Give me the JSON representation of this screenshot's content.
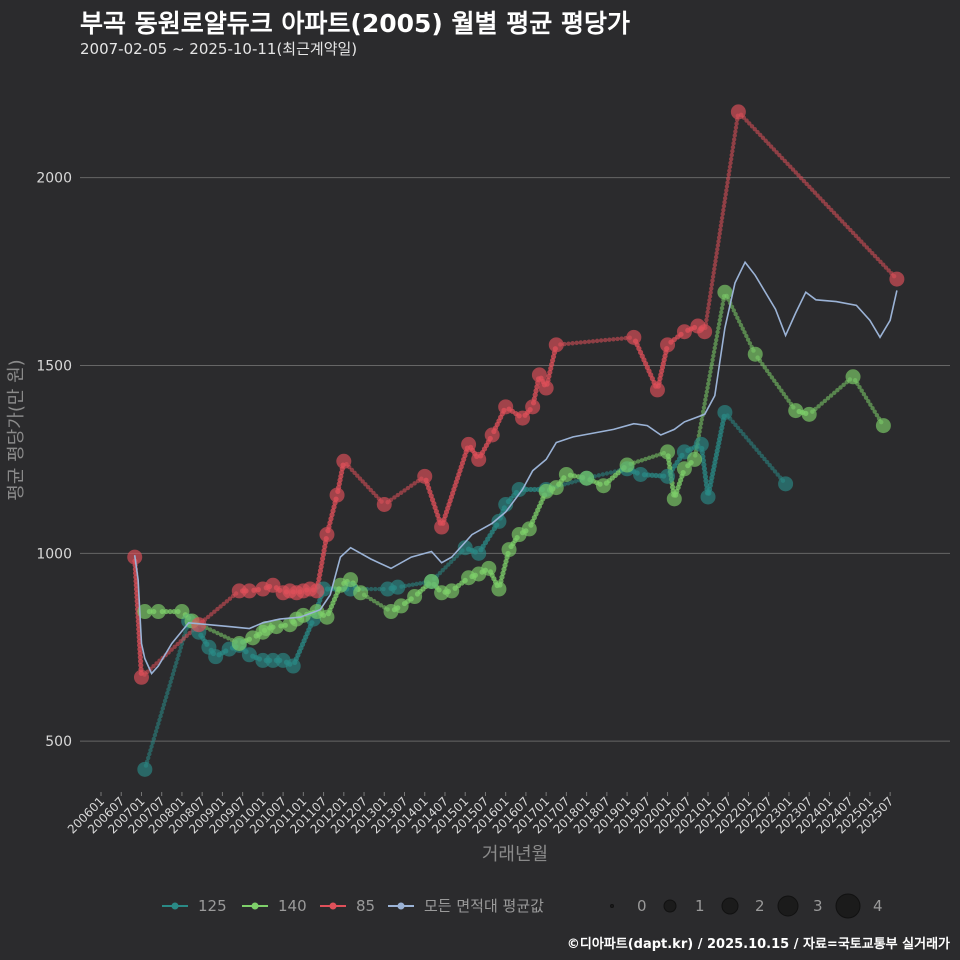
{
  "header": {
    "title": "부곡 동원로얄듀크 아파트(2005) 월별 평균 평당가",
    "subtitle": "2007-02-05 ~ 2025-10-11(최근계약일)"
  },
  "footer": {
    "credit": "©디아파트(dapt.kr) / 2025.10.15 / 자료=국토교통부 실거래가"
  },
  "colors": {
    "s125": "#2a8a86",
    "s140": "#7ed06a",
    "s85": "#e0505a",
    "avg": "#9bb3d6",
    "grid": "#666666",
    "text": "#d8d8d8"
  },
  "chart_data": {
    "type": "line",
    "title": "부곡 동원로얄듀크 아파트(2005) 월별 평균 평당가",
    "xlabel": "거래년월",
    "ylabel": "평균 평당가(만 원)",
    "x_range": [
      "2006-01",
      "2025-12"
    ],
    "ylim": [
      370,
      2260
    ],
    "y_ticks": [
      500,
      1000,
      1500,
      2000
    ],
    "x_tick_labels": [
      "200601",
      "200607",
      "200701",
      "200707",
      "200801",
      "200807",
      "200901",
      "200907",
      "201001",
      "201007",
      "201101",
      "201107",
      "201201",
      "201207",
      "201301",
      "201307",
      "201401",
      "201407",
      "201501",
      "201507",
      "201601",
      "201607",
      "201701",
      "201707",
      "201801",
      "201807",
      "201901",
      "201907",
      "202001",
      "202007",
      "202101",
      "202107",
      "202201",
      "202207",
      "202301",
      "202307",
      "202401",
      "202407",
      "202501",
      "202507"
    ],
    "legend": {
      "position": "bottom",
      "series_labels": [
        "125",
        "140",
        "85",
        "모든 면적대 평균값"
      ],
      "size_labels": [
        "0",
        "1",
        "2",
        "3",
        "4"
      ]
    },
    "series": [
      {
        "name": "125",
        "points": [
          [
            "2007-02",
            425
          ],
          [
            "2008-03",
            820
          ],
          [
            "2008-06",
            790
          ],
          [
            "2008-09",
            750
          ],
          [
            "2008-11",
            725
          ],
          [
            "2009-03",
            745
          ],
          [
            "2009-06",
            755
          ],
          [
            "2009-09",
            730
          ],
          [
            "2010-01",
            715
          ],
          [
            "2010-04",
            715
          ],
          [
            "2010-07",
            715
          ],
          [
            "2010-10",
            700
          ],
          [
            "2011-04",
            825
          ],
          [
            "2011-07",
            905
          ],
          [
            "2012-03",
            905
          ],
          [
            "2013-02",
            905
          ],
          [
            "2013-05",
            910
          ],
          [
            "2014-03",
            925
          ],
          [
            "2015-01",
            1015
          ],
          [
            "2015-05",
            1000
          ],
          [
            "2015-11",
            1085
          ],
          [
            "2016-01",
            1130
          ],
          [
            "2016-05",
            1170
          ],
          [
            "2017-01",
            1170
          ],
          [
            "2018-01",
            1200
          ],
          [
            "2019-01",
            1225
          ],
          [
            "2019-05",
            1210
          ],
          [
            "2020-01",
            1205
          ],
          [
            "2020-06",
            1270
          ],
          [
            "2020-11",
            1290
          ],
          [
            "2021-01",
            1150
          ],
          [
            "2021-06",
            1375
          ],
          [
            "2022-12",
            1185
          ]
        ]
      },
      {
        "name": "140",
        "points": [
          [
            "2007-02",
            845
          ],
          [
            "2007-06",
            845
          ],
          [
            "2008-01",
            845
          ],
          [
            "2008-04",
            820
          ],
          [
            "2009-06",
            760
          ],
          [
            "2009-10",
            775
          ],
          [
            "2010-01",
            790
          ],
          [
            "2010-02",
            800
          ],
          [
            "2010-05",
            805
          ],
          [
            "2010-09",
            810
          ],
          [
            "2010-11",
            825
          ],
          [
            "2011-01",
            835
          ],
          [
            "2011-05",
            845
          ],
          [
            "2011-08",
            830
          ],
          [
            "2011-12",
            915
          ],
          [
            "2012-03",
            930
          ],
          [
            "2012-06",
            895
          ],
          [
            "2013-03",
            845
          ],
          [
            "2013-06",
            860
          ],
          [
            "2013-10",
            885
          ],
          [
            "2014-03",
            925
          ],
          [
            "2014-06",
            895
          ],
          [
            "2014-09",
            900
          ],
          [
            "2015-02",
            935
          ],
          [
            "2015-05",
            945
          ],
          [
            "2015-08",
            960
          ],
          [
            "2015-11",
            905
          ],
          [
            "2016-02",
            1010
          ],
          [
            "2016-05",
            1050
          ],
          [
            "2016-08",
            1065
          ],
          [
            "2017-01",
            1165
          ],
          [
            "2017-04",
            1175
          ],
          [
            "2017-07",
            1210
          ],
          [
            "2018-01",
            1200
          ],
          [
            "2018-06",
            1180
          ],
          [
            "2019-01",
            1235
          ],
          [
            "2020-01",
            1270
          ],
          [
            "2020-03",
            1145
          ],
          [
            "2020-06",
            1225
          ],
          [
            "2020-09",
            1250
          ],
          [
            "2021-06",
            1695
          ],
          [
            "2022-03",
            1530
          ],
          [
            "2023-03",
            1380
          ],
          [
            "2023-07",
            1370
          ],
          [
            "2024-08",
            1470
          ],
          [
            "2025-05",
            1340
          ]
        ]
      },
      {
        "name": "85",
        "points": [
          [
            "2006-11",
            990
          ],
          [
            "2007-01",
            670
          ],
          [
            "2008-06",
            810
          ],
          [
            "2009-06",
            900
          ],
          [
            "2009-09",
            900
          ],
          [
            "2010-01",
            905
          ],
          [
            "2010-04",
            915
          ],
          [
            "2010-07",
            895
          ],
          [
            "2010-09",
            900
          ],
          [
            "2010-11",
            895
          ],
          [
            "2011-01",
            900
          ],
          [
            "2011-03",
            905
          ],
          [
            "2011-05",
            900
          ],
          [
            "2011-08",
            1050
          ],
          [
            "2011-11",
            1155
          ],
          [
            "2012-01",
            1245
          ],
          [
            "2013-01",
            1130
          ],
          [
            "2014-01",
            1205
          ],
          [
            "2014-06",
            1070
          ],
          [
            "2015-02",
            1290
          ],
          [
            "2015-05",
            1250
          ],
          [
            "2015-09",
            1315
          ],
          [
            "2016-01",
            1390
          ],
          [
            "2016-06",
            1360
          ],
          [
            "2016-09",
            1390
          ],
          [
            "2016-11",
            1475
          ],
          [
            "2017-01",
            1440
          ],
          [
            "2017-04",
            1555
          ],
          [
            "2019-03",
            1575
          ],
          [
            "2019-10",
            1435
          ],
          [
            "2020-01",
            1555
          ],
          [
            "2020-06",
            1590
          ],
          [
            "2020-10",
            1605
          ],
          [
            "2020-12",
            1590
          ],
          [
            "2021-10",
            2175
          ],
          [
            "2025-09",
            1730
          ]
        ]
      },
      {
        "name": "모든 면적대 평균값",
        "points": [
          [
            "2006-11",
            995
          ],
          [
            "2006-12",
            930
          ],
          [
            "2007-01",
            760
          ],
          [
            "2007-02",
            720
          ],
          [
            "2007-04",
            680
          ],
          [
            "2007-06",
            700
          ],
          [
            "2007-10",
            760
          ],
          [
            "2008-03",
            815
          ],
          [
            "2008-09",
            810
          ],
          [
            "2009-03",
            805
          ],
          [
            "2009-09",
            800
          ],
          [
            "2010-01",
            815
          ],
          [
            "2010-06",
            825
          ],
          [
            "2010-12",
            830
          ],
          [
            "2011-06",
            850
          ],
          [
            "2011-09",
            890
          ],
          [
            "2011-12",
            990
          ],
          [
            "2012-03",
            1015
          ],
          [
            "2012-09",
            985
          ],
          [
            "2013-03",
            960
          ],
          [
            "2013-09",
            990
          ],
          [
            "2014-03",
            1005
          ],
          [
            "2014-06",
            975
          ],
          [
            "2014-09",
            990
          ],
          [
            "2015-03",
            1050
          ],
          [
            "2015-09",
            1080
          ],
          [
            "2016-01",
            1110
          ],
          [
            "2016-06",
            1170
          ],
          [
            "2016-09",
            1220
          ],
          [
            "2017-01",
            1250
          ],
          [
            "2017-04",
            1295
          ],
          [
            "2017-09",
            1310
          ],
          [
            "2018-03",
            1320
          ],
          [
            "2018-09",
            1330
          ],
          [
            "2019-03",
            1345
          ],
          [
            "2019-07",
            1340
          ],
          [
            "2019-11",
            1315
          ],
          [
            "2020-03",
            1330
          ],
          [
            "2020-06",
            1350
          ],
          [
            "2020-09",
            1360
          ],
          [
            "2020-12",
            1370
          ],
          [
            "2021-03",
            1420
          ],
          [
            "2021-06",
            1600
          ],
          [
            "2021-09",
            1720
          ],
          [
            "2021-12",
            1775
          ],
          [
            "2022-03",
            1740
          ],
          [
            "2022-09",
            1650
          ],
          [
            "2022-12",
            1580
          ],
          [
            "2023-03",
            1640
          ],
          [
            "2023-06",
            1695
          ],
          [
            "2023-09",
            1675
          ],
          [
            "2024-03",
            1670
          ],
          [
            "2024-09",
            1660
          ],
          [
            "2025-01",
            1620
          ],
          [
            "2025-04",
            1575
          ],
          [
            "2025-07",
            1620
          ],
          [
            "2025-09",
            1700
          ]
        ]
      }
    ]
  }
}
